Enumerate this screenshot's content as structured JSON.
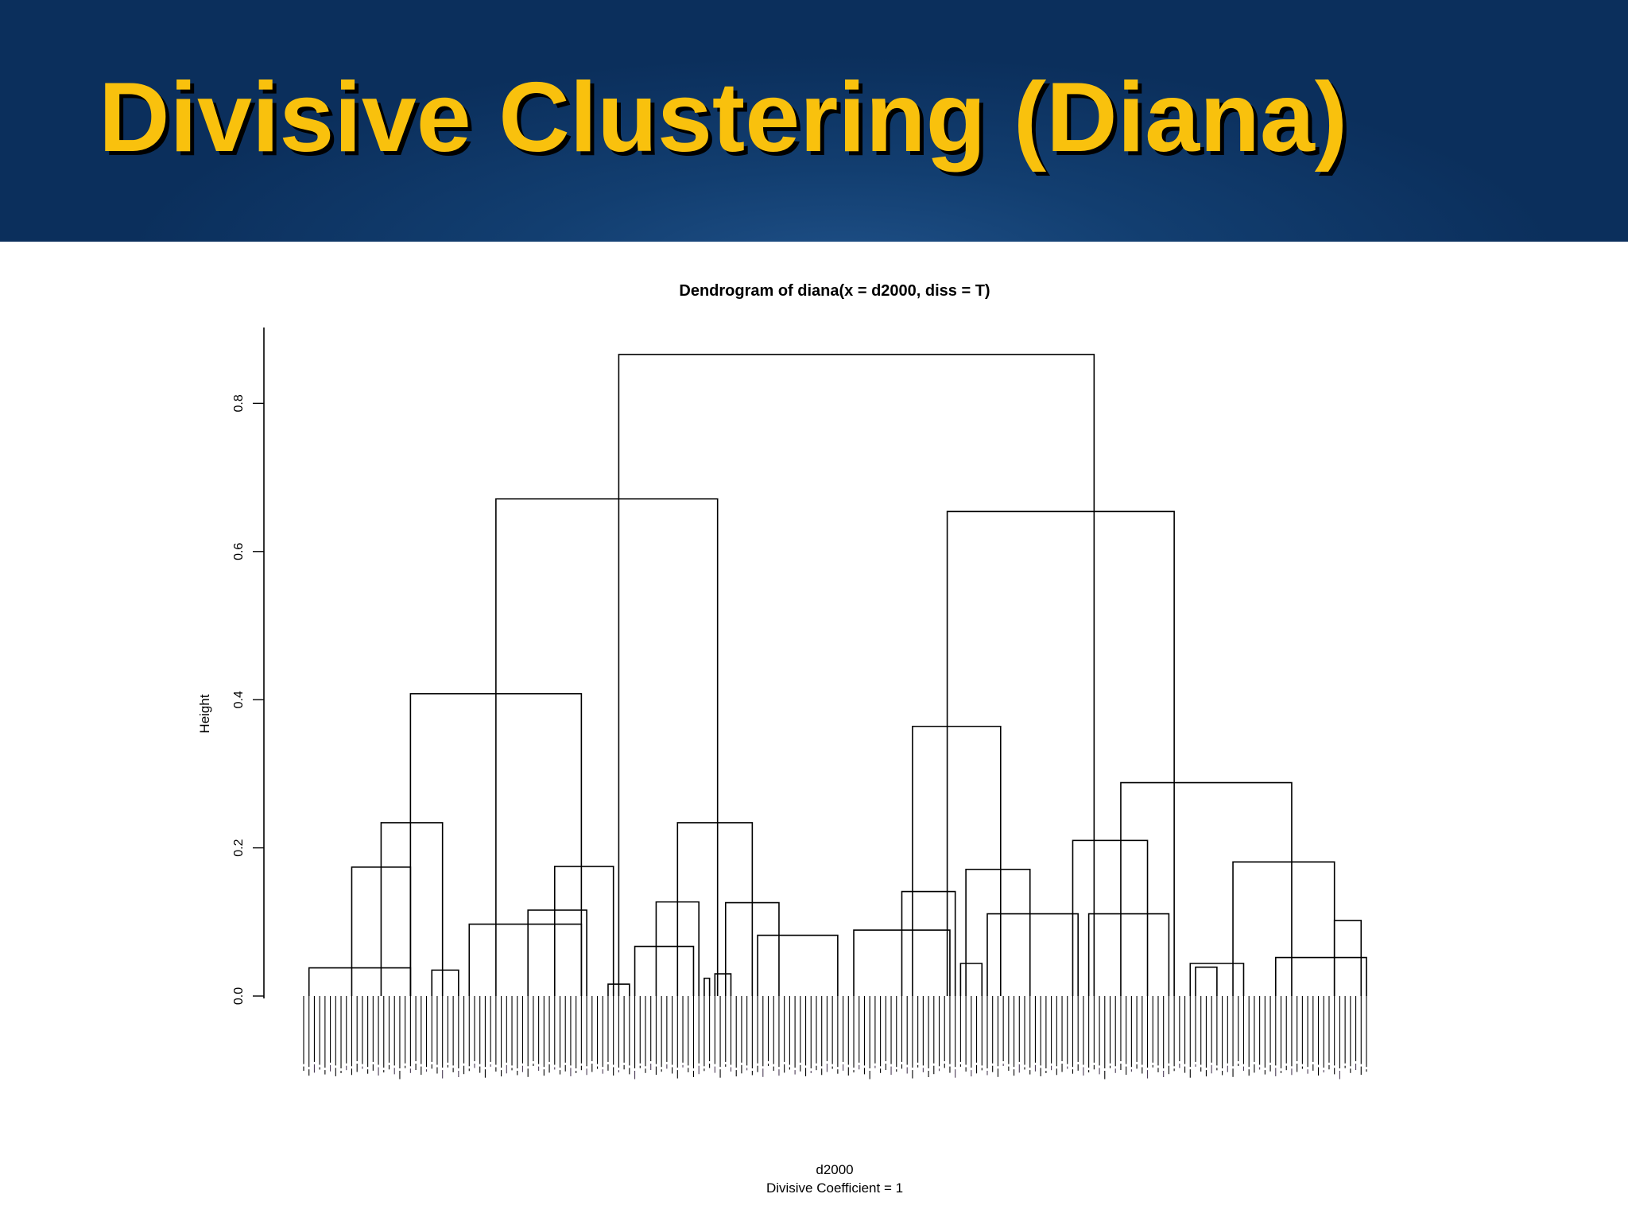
{
  "slide": {
    "title": "Divisive Clustering (Diana)"
  },
  "chart_data": {
    "type": "dendrogram",
    "title": "Dendrogram of  diana(x = d2000, diss = T)",
    "xlabel": "d2000",
    "subtitle": "Divisive Coefficient =  1",
    "ylabel": "Height",
    "ylim": [
      0,
      0.9
    ],
    "yticks": [
      0.0,
      0.2,
      0.4,
      0.6,
      0.8
    ],
    "ytick_labels": [
      "0.0",
      "0.2",
      "0.4",
      "0.6",
      "0.8"
    ],
    "leaf_count": 200,
    "leaf_range": [
      1,
      200
    ],
    "merges": [
      {
        "left": 60,
        "right": 149,
        "height": 0.866
      },
      {
        "left": 37,
        "right": 78.5,
        "height": 0.671
      },
      {
        "left": 121.5,
        "right": 164,
        "height": 0.654
      },
      {
        "left": 21,
        "right": 53,
        "height": 0.408
      },
      {
        "left": 115,
        "right": 131.5,
        "height": 0.364
      },
      {
        "left": 154,
        "right": 186,
        "height": 0.288
      },
      {
        "left": 15.5,
        "right": 27,
        "height": 0.234
      },
      {
        "left": 71,
        "right": 85,
        "height": 0.234
      },
      {
        "left": 145,
        "right": 159,
        "height": 0.21
      },
      {
        "left": 175,
        "right": 194,
        "height": 0.181
      },
      {
        "left": 48,
        "right": 59,
        "height": 0.175
      },
      {
        "left": 10,
        "right": 21,
        "height": 0.174
      },
      {
        "left": 125,
        "right": 137,
        "height": 0.171
      },
      {
        "left": 113,
        "right": 123,
        "height": 0.141
      },
      {
        "left": 67,
        "right": 75,
        "height": 0.127
      },
      {
        "left": 80,
        "right": 90,
        "height": 0.126
      },
      {
        "left": 43,
        "right": 54,
        "height": 0.116
      },
      {
        "left": 129,
        "right": 146,
        "height": 0.111
      },
      {
        "left": 148,
        "right": 163,
        "height": 0.111
      },
      {
        "left": 194,
        "right": 199,
        "height": 0.102
      },
      {
        "left": 32,
        "right": 53,
        "height": 0.097
      },
      {
        "left": 104,
        "right": 122,
        "height": 0.089
      },
      {
        "left": 86,
        "right": 101,
        "height": 0.082
      },
      {
        "left": 63,
        "right": 74,
        "height": 0.067
      },
      {
        "left": 183,
        "right": 200,
        "height": 0.052
      },
      {
        "left": 167,
        "right": 177,
        "height": 0.044
      },
      {
        "left": 124,
        "right": 128,
        "height": 0.044
      },
      {
        "left": 168,
        "right": 172,
        "height": 0.039
      },
      {
        "left": 2,
        "right": 21,
        "height": 0.038
      },
      {
        "left": 25,
        "right": 30,
        "height": 0.035
      },
      {
        "left": 78,
        "right": 81,
        "height": 0.03
      },
      {
        "left": 76,
        "right": 77,
        "height": 0.024
      },
      {
        "left": 58,
        "right": 62,
        "height": 0.016
      }
    ]
  }
}
